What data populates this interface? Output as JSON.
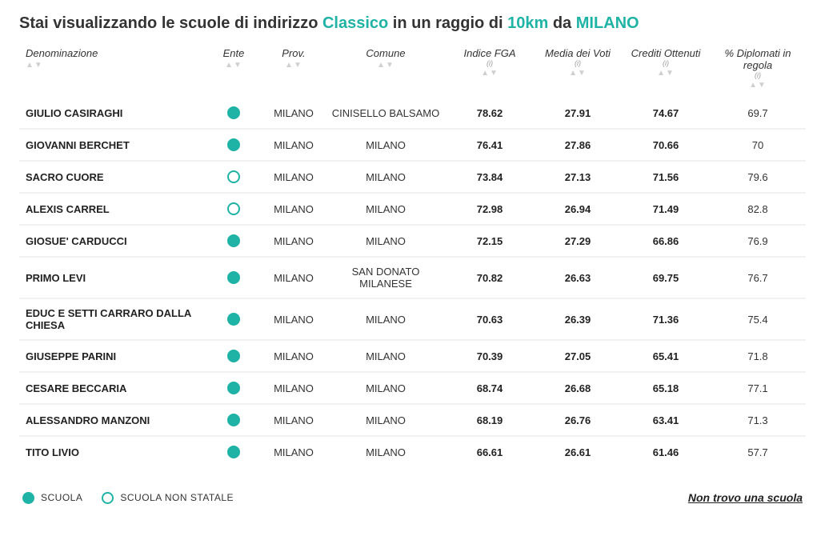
{
  "title": {
    "prefix": "Stai visualizzando le scuole di indirizzo ",
    "hl1": "Classico",
    "mid": " in un raggio di ",
    "hl2": "10km",
    "mid2": " da ",
    "hl3": "MILANO"
  },
  "columns": {
    "name": {
      "label": "Denominazione",
      "info": ""
    },
    "ente": {
      "label": "Ente",
      "info": ""
    },
    "prov": {
      "label": "Prov.",
      "info": ""
    },
    "comune": {
      "label": "Comune",
      "info": ""
    },
    "fga": {
      "label": "Indice FGA",
      "info": "(i)"
    },
    "media": {
      "label": "Media dei Voti",
      "info": "(i)"
    },
    "cred": {
      "label": "Crediti Ottenuti",
      "info": "(i)"
    },
    "dipl": {
      "label": "% Diplomati in regola",
      "info": "(i)"
    }
  },
  "rows": [
    {
      "name": "GIULIO CASIRAGHI",
      "ente": "filled",
      "prov": "MILANO",
      "comune": "CINISELLO BALSAMO",
      "fga": "78.62",
      "media": "27.91",
      "cred": "74.67",
      "dipl": "69.7"
    },
    {
      "name": "GIOVANNI BERCHET",
      "ente": "filled",
      "prov": "MILANO",
      "comune": "MILANO",
      "fga": "76.41",
      "media": "27.86",
      "cred": "70.66",
      "dipl": "70"
    },
    {
      "name": "SACRO CUORE",
      "ente": "hollow",
      "prov": "MILANO",
      "comune": "MILANO",
      "fga": "73.84",
      "media": "27.13",
      "cred": "71.56",
      "dipl": "79.6"
    },
    {
      "name": "ALEXIS CARREL",
      "ente": "hollow",
      "prov": "MILANO",
      "comune": "MILANO",
      "fga": "72.98",
      "media": "26.94",
      "cred": "71.49",
      "dipl": "82.8"
    },
    {
      "name": "GIOSUE' CARDUCCI",
      "ente": "filled",
      "prov": "MILANO",
      "comune": "MILANO",
      "fga": "72.15",
      "media": "27.29",
      "cred": "66.86",
      "dipl": "76.9"
    },
    {
      "name": "PRIMO LEVI",
      "ente": "filled",
      "prov": "MILANO",
      "comune": "SAN DONATO MILANESE",
      "fga": "70.82",
      "media": "26.63",
      "cred": "69.75",
      "dipl": "76.7"
    },
    {
      "name": "EDUC E SETTI CARRARO DALLA CHIESA",
      "ente": "filled",
      "prov": "MILANO",
      "comune": "MILANO",
      "fga": "70.63",
      "media": "26.39",
      "cred": "71.36",
      "dipl": "75.4"
    },
    {
      "name": "GIUSEPPE PARINI",
      "ente": "filled",
      "prov": "MILANO",
      "comune": "MILANO",
      "fga": "70.39",
      "media": "27.05",
      "cred": "65.41",
      "dipl": "71.8"
    },
    {
      "name": "CESARE BECCARIA",
      "ente": "filled",
      "prov": "MILANO",
      "comune": "MILANO",
      "fga": "68.74",
      "media": "26.68",
      "cred": "65.18",
      "dipl": "77.1"
    },
    {
      "name": "ALESSANDRO MANZONI",
      "ente": "filled",
      "prov": "MILANO",
      "comune": "MILANO",
      "fga": "68.19",
      "media": "26.76",
      "cred": "63.41",
      "dipl": "71.3"
    },
    {
      "name": "TITO LIVIO",
      "ente": "filled",
      "prov": "MILANO",
      "comune": "MILANO",
      "fga": "66.61",
      "media": "26.61",
      "cred": "61.46",
      "dipl": "57.7"
    }
  ],
  "legend": {
    "scuola": "SCUOLA",
    "scuola_non_statale": "SCUOLA NON STATALE"
  },
  "not_found_link": "Non trovo una scuola",
  "colors": {
    "accent": "#1fb3a6",
    "text": "#333333",
    "muted": "#cfcfcf",
    "row_divider": "#f1f1f1"
  }
}
